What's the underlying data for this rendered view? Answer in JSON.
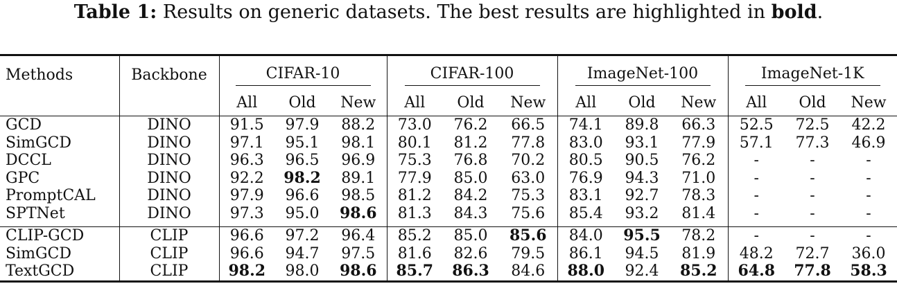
{
  "caption": {
    "label": "Table 1:",
    "text_before": " Results on generic datasets. The best results are highlighted in ",
    "bold_word": "bold",
    "text_after": "."
  },
  "header": {
    "methods": "Methods",
    "backbone": "Backbone",
    "groups": [
      "CIFAR-10",
      "CIFAR-100",
      "ImageNet-100",
      "ImageNet-1K"
    ],
    "subcols": [
      "All",
      "Old",
      "New"
    ]
  },
  "sections": [
    {
      "rows": [
        {
          "method": "GCD",
          "backbone": "DINO",
          "values": [
            "91.5",
            "97.9",
            "88.2",
            "73.0",
            "76.2",
            "66.5",
            "74.1",
            "89.8",
            "66.3",
            "52.5",
            "72.5",
            "42.2"
          ],
          "bold": []
        },
        {
          "method": "SimGCD",
          "backbone": "DINO",
          "values": [
            "97.1",
            "95.1",
            "98.1",
            "80.1",
            "81.2",
            "77.8",
            "83.0",
            "93.1",
            "77.9",
            "57.1",
            "77.3",
            "46.9"
          ],
          "bold": []
        },
        {
          "method": "DCCL",
          "backbone": "DINO",
          "values": [
            "96.3",
            "96.5",
            "96.9",
            "75.3",
            "76.8",
            "70.2",
            "80.5",
            "90.5",
            "76.2",
            "-",
            "-",
            "-"
          ],
          "bold": []
        },
        {
          "method": "GPC",
          "backbone": "DINO",
          "values": [
            "92.2",
            "98.2",
            "89.1",
            "77.9",
            "85.0",
            "63.0",
            "76.9",
            "94.3",
            "71.0",
            "-",
            "-",
            "-"
          ],
          "bold": [
            1
          ]
        },
        {
          "method": "PromptCAL",
          "backbone": "DINO",
          "values": [
            "97.9",
            "96.6",
            "98.5",
            "81.2",
            "84.2",
            "75.3",
            "83.1",
            "92.7",
            "78.3",
            "-",
            "-",
            "-"
          ],
          "bold": []
        },
        {
          "method": "SPTNet",
          "backbone": "DINO",
          "values": [
            "97.3",
            "95.0",
            "98.6",
            "81.3",
            "84.3",
            "75.6",
            "85.4",
            "93.2",
            "81.4",
            "-",
            "-",
            "-"
          ],
          "bold": [
            2
          ]
        }
      ]
    },
    {
      "rows": [
        {
          "method": "CLIP-GCD",
          "backbone": "CLIP",
          "values": [
            "96.6",
            "97.2",
            "96.4",
            "85.2",
            "85.0",
            "85.6",
            "84.0",
            "95.5",
            "78.2",
            "-",
            "-",
            "-"
          ],
          "bold": [
            5,
            7
          ]
        },
        {
          "method": "SimGCD",
          "backbone": "CLIP",
          "values": [
            "96.6",
            "94.7",
            "97.5",
            "81.6",
            "82.6",
            "79.5",
            "86.1",
            "94.5",
            "81.9",
            "48.2",
            "72.7",
            "36.0"
          ],
          "bold": []
        },
        {
          "method": "TextGCD",
          "backbone": "CLIP",
          "values": [
            "98.2",
            "98.0",
            "98.6",
            "85.7",
            "86.3",
            "84.6",
            "88.0",
            "92.4",
            "85.2",
            "64.8",
            "77.8",
            "58.3"
          ],
          "bold": [
            0,
            2,
            3,
            4,
            6,
            8,
            9,
            10,
            11
          ]
        }
      ]
    }
  ]
}
